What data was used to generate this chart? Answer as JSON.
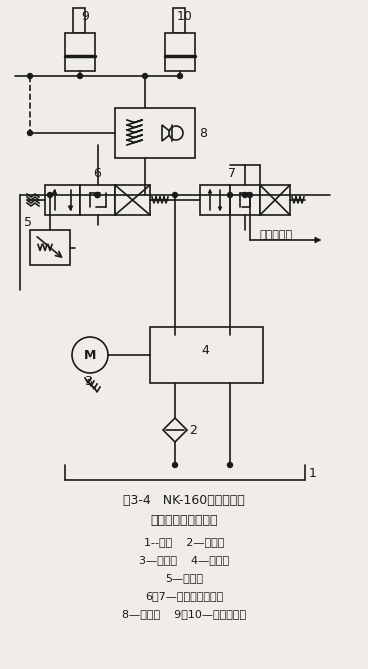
{
  "title_line1": "图3-4   NK-160汽车起重机",
  "title_line2": "变幅机构液压原理图",
  "legend_lines": [
    "1--油箱    2—过滤器",
    "3—发动机    4—齿轮泵",
    "5—溢流阀",
    "6、7—手动联动换向阀",
    "8—平衡阀    9、10—变幅液压缸"
  ],
  "bg_color": "#f0ede8",
  "line_color": "#1a1a1a",
  "text_color": "#1a1a1a"
}
